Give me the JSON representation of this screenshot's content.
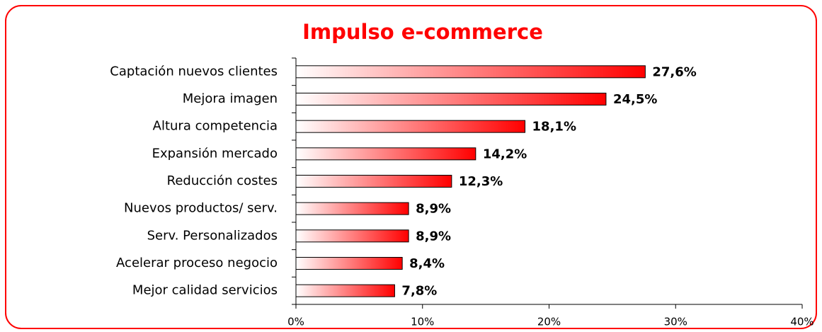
{
  "chart_data": {
    "type": "bar",
    "orientation": "horizontal",
    "title": "Impulso e-commerce",
    "categories": [
      "Captación nuevos clientes",
      "Mejora imagen",
      "Altura competencia",
      "Expansión mercado",
      "Reducción costes",
      "Nuevos productos/ serv.",
      "Serv. Personalizados",
      "Acelerar proceso negocio",
      "Mejor calidad servicios"
    ],
    "values": [
      27.6,
      24.5,
      18.1,
      14.2,
      12.3,
      8.9,
      8.9,
      8.4,
      7.8
    ],
    "value_labels": [
      "27,6%",
      "24,5%",
      "18,1%",
      "14,2%",
      "12,3%",
      "8,9%",
      "8,9%",
      "8,4%",
      "7,8%"
    ],
    "color": "#ff0000",
    "xlim": [
      0,
      40
    ],
    "xticks": [
      {
        "value": 0,
        "label": "0%"
      },
      {
        "value": 10,
        "label": "10%"
      },
      {
        "value": 20,
        "label": "20%"
      },
      {
        "value": 30,
        "label": "30%"
      },
      {
        "value": 40,
        "label": "40%"
      }
    ]
  }
}
